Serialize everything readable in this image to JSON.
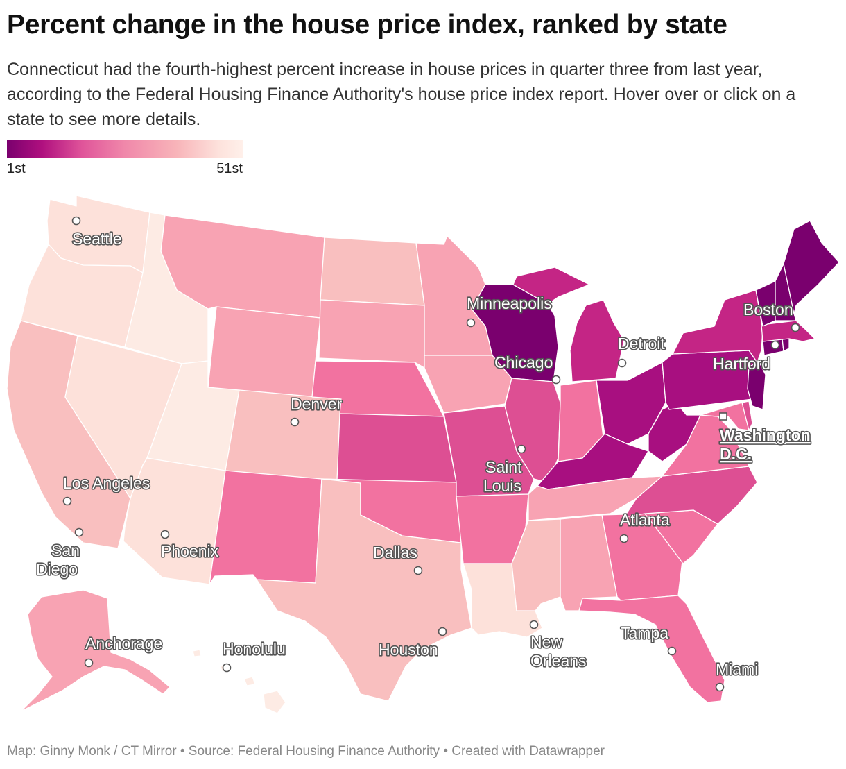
{
  "title": "Percent change in the house price index, ranked by state",
  "subtitle": "Connecticut had the fourth-highest percent increase in house prices in quarter three from last year, according to the Federal Housing Finance Authority's house price index report. Hover over or click on a state to see more details.",
  "legend": {
    "min_label": "1st",
    "max_label": "51st",
    "colors": [
      "#7a006e",
      "#b0107f",
      "#e0559a",
      "#f088aa",
      "#f8b4b9",
      "#fde2dc"
    ]
  },
  "colors": {
    "darkest": "#7a006e",
    "dark": "#a80f80",
    "mid_dark": "#c42585",
    "mid": "#dd4f93",
    "mid_light": "#f272a0",
    "light": "#f8a3b3",
    "lighter": "#f9bfbf",
    "lightest": "#fde1da",
    "palest": "#fdebe4"
  },
  "cities": {
    "seattle": "Seattle",
    "minneapolis": "Minneapolis",
    "boston": "Boston",
    "detroit": "Detroit",
    "chicago": "Chicago",
    "hartford": "Hartford",
    "denver": "Denver",
    "washington_1": "Washington",
    "washington_2": "D.C.",
    "saint_1": "Saint",
    "saint_2": "Louis",
    "los_angeles": "Los Angeles",
    "atlanta": "Atlanta",
    "san_1": "San",
    "san_2": "Diego",
    "phoenix": "Phoenix",
    "dallas": "Dallas",
    "anchorage": "Anchorage",
    "honolulu": "Honolulu",
    "houston": "Houston",
    "new_1": "New",
    "new_2": "Orleans",
    "tampa": "Tampa",
    "miami": "Miami"
  },
  "footer": "Map: Ginny Monk / CT Mirror • Source: Federal Housing Finance Authority • Created with Datawrapper"
}
